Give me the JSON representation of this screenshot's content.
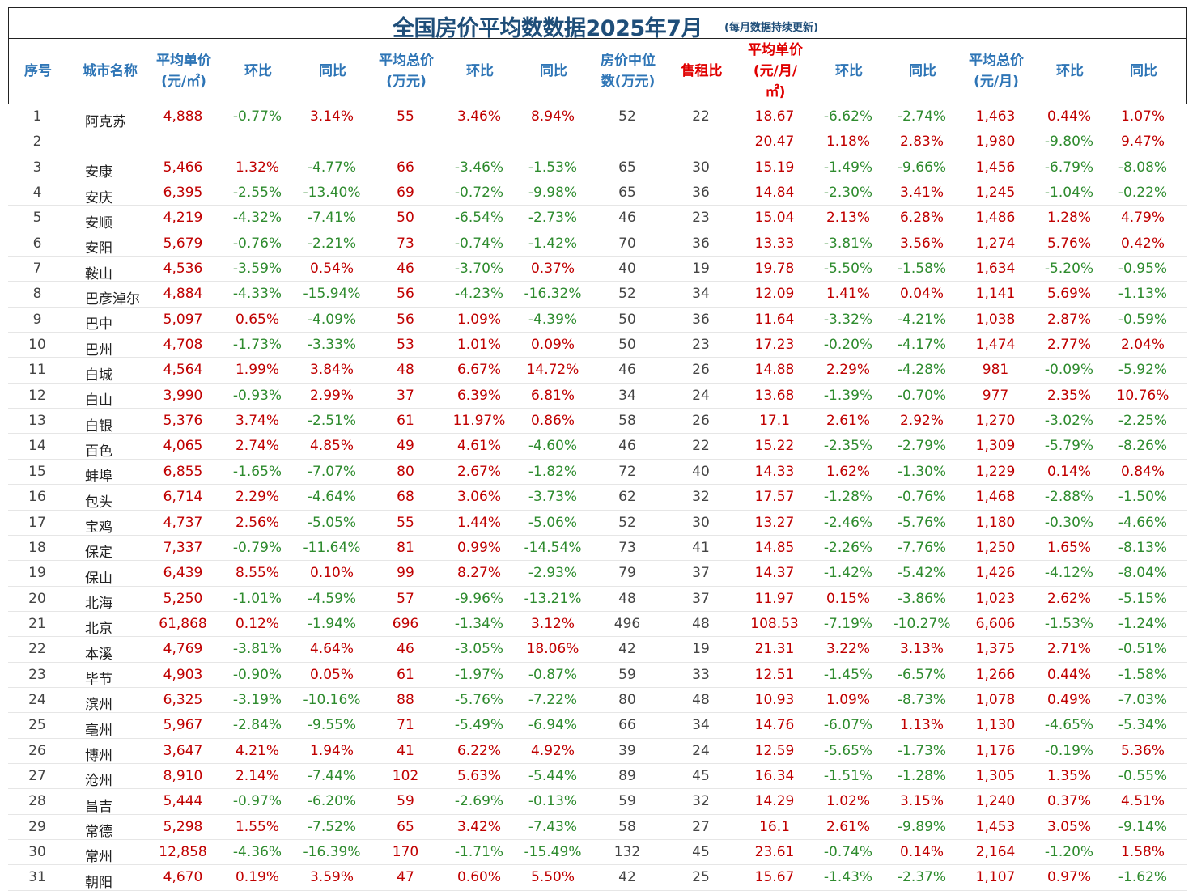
{
  "title": "全国房价平均数数据2025年7月",
  "subtitle": "(每月数据持续更新)",
  "colors": {
    "title": "#1f4e79",
    "header": "#2e75b6",
    "header_red": "#e00000",
    "positive": "#c00000",
    "negative": "#2e8b2e"
  },
  "headers": [
    {
      "text": "序号",
      "red": false
    },
    {
      "text": "城市名称",
      "red": false
    },
    {
      "text": "平均单价\n(元/㎡)",
      "red": false
    },
    {
      "text": "环比",
      "red": false
    },
    {
      "text": "同比",
      "red": false
    },
    {
      "text": "平均总价\n(万元)",
      "red": false
    },
    {
      "text": "环比",
      "red": false
    },
    {
      "text": "同比",
      "red": false
    },
    {
      "text": "房价中位\n数(万元)",
      "red": false
    },
    {
      "text": "售租比",
      "red": true
    },
    {
      "text": "平均单价\n(元/月/\n㎡)",
      "red": true
    },
    {
      "text": "环比",
      "red": false
    },
    {
      "text": "同比",
      "red": false
    },
    {
      "text": "平均总价\n(元/月)",
      "red": false
    },
    {
      "text": "环比",
      "red": false
    },
    {
      "text": "同比",
      "red": false
    }
  ],
  "rows": [
    [
      "1",
      "阿克苏",
      "4,888",
      "-0.77%",
      "3.14%",
      "55",
      "3.46%",
      "8.94%",
      "52",
      "22",
      "18.67",
      "-6.62%",
      "-2.74%",
      "1,463",
      "0.44%",
      "1.07%"
    ],
    [
      "2",
      "",
      "",
      "",
      "",
      "",
      "",
      "",
      "",
      "",
      "20.47",
      "1.18%",
      "2.83%",
      "1,980",
      "-9.80%",
      "9.47%"
    ],
    [
      "3",
      "安康",
      "5,466",
      "1.32%",
      "-4.77%",
      "66",
      "-3.46%",
      "-1.53%",
      "65",
      "30",
      "15.19",
      "-1.49%",
      "-9.66%",
      "1,456",
      "-6.79%",
      "-8.08%"
    ],
    [
      "4",
      "安庆",
      "6,395",
      "-2.55%",
      "-13.40%",
      "69",
      "-0.72%",
      "-9.98%",
      "65",
      "36",
      "14.84",
      "-2.30%",
      "3.41%",
      "1,245",
      "-1.04%",
      "-0.22%"
    ],
    [
      "5",
      "安顺",
      "4,219",
      "-4.32%",
      "-7.41%",
      "50",
      "-6.54%",
      "-2.73%",
      "46",
      "23",
      "15.04",
      "2.13%",
      "6.28%",
      "1,486",
      "1.28%",
      "4.79%"
    ],
    [
      "6",
      "安阳",
      "5,679",
      "-0.76%",
      "-2.21%",
      "73",
      "-0.74%",
      "-1.42%",
      "70",
      "36",
      "13.33",
      "-3.81%",
      "3.56%",
      "1,274",
      "5.76%",
      "0.42%"
    ],
    [
      "7",
      "鞍山",
      "4,536",
      "-3.59%",
      "0.54%",
      "46",
      "-3.70%",
      "0.37%",
      "40",
      "19",
      "19.78",
      "-5.50%",
      "-1.58%",
      "1,634",
      "-5.20%",
      "-0.95%"
    ],
    [
      "8",
      "巴彦淖尔",
      "4,884",
      "-4.33%",
      "-15.94%",
      "56",
      "-4.23%",
      "-16.32%",
      "52",
      "34",
      "12.09",
      "1.41%",
      "0.04%",
      "1,141",
      "5.69%",
      "-1.13%"
    ],
    [
      "9",
      "巴中",
      "5,097",
      "0.65%",
      "-4.09%",
      "56",
      "1.09%",
      "-4.39%",
      "50",
      "36",
      "11.64",
      "-3.32%",
      "-4.21%",
      "1,038",
      "2.87%",
      "-0.59%"
    ],
    [
      "10",
      "巴州",
      "4,708",
      "-1.73%",
      "-3.33%",
      "53",
      "1.01%",
      "0.09%",
      "50",
      "23",
      "17.23",
      "-0.20%",
      "-4.17%",
      "1,474",
      "2.77%",
      "2.04%"
    ],
    [
      "11",
      "白城",
      "4,564",
      "1.99%",
      "3.84%",
      "48",
      "6.67%",
      "14.72%",
      "46",
      "26",
      "14.88",
      "2.29%",
      "-4.28%",
      "981",
      "-0.09%",
      "-5.92%"
    ],
    [
      "12",
      "白山",
      "3,990",
      "-0.93%",
      "2.99%",
      "37",
      "6.39%",
      "6.81%",
      "34",
      "24",
      "13.68",
      "-1.39%",
      "-0.70%",
      "977",
      "2.35%",
      "10.76%"
    ],
    [
      "13",
      "白银",
      "5,376",
      "3.74%",
      "-2.51%",
      "61",
      "11.97%",
      "0.86%",
      "58",
      "26",
      "17.1",
      "2.61%",
      "2.92%",
      "1,270",
      "-3.02%",
      "-2.25%"
    ],
    [
      "14",
      "百色",
      "4,065",
      "2.74%",
      "4.85%",
      "49",
      "4.61%",
      "-4.60%",
      "46",
      "22",
      "15.22",
      "-2.35%",
      "-2.79%",
      "1,309",
      "-5.79%",
      "-8.26%"
    ],
    [
      "15",
      "蚌埠",
      "6,855",
      "-1.65%",
      "-7.07%",
      "80",
      "2.67%",
      "-1.82%",
      "72",
      "40",
      "14.33",
      "1.62%",
      "-1.30%",
      "1,229",
      "0.14%",
      "0.84%"
    ],
    [
      "16",
      "包头",
      "6,714",
      "2.29%",
      "-4.64%",
      "68",
      "3.06%",
      "-3.73%",
      "62",
      "32",
      "17.57",
      "-1.28%",
      "-0.76%",
      "1,468",
      "-2.88%",
      "-1.50%"
    ],
    [
      "17",
      "宝鸡",
      "4,737",
      "2.56%",
      "-5.05%",
      "55",
      "1.44%",
      "-5.06%",
      "52",
      "30",
      "13.27",
      "-2.46%",
      "-5.76%",
      "1,180",
      "-0.30%",
      "-4.66%"
    ],
    [
      "18",
      "保定",
      "7,337",
      "-0.79%",
      "-11.64%",
      "81",
      "0.99%",
      "-14.54%",
      "73",
      "41",
      "14.85",
      "-2.26%",
      "-7.76%",
      "1,250",
      "1.65%",
      "-8.13%"
    ],
    [
      "19",
      "保山",
      "6,439",
      "8.55%",
      "0.10%",
      "99",
      "8.27%",
      "-2.93%",
      "79",
      "37",
      "14.37",
      "-1.42%",
      "-5.42%",
      "1,426",
      "-4.12%",
      "-8.04%"
    ],
    [
      "20",
      "北海",
      "5,250",
      "-1.01%",
      "-4.59%",
      "57",
      "-9.96%",
      "-13.21%",
      "48",
      "37",
      "11.97",
      "0.15%",
      "-3.86%",
      "1,023",
      "2.62%",
      "-5.15%"
    ],
    [
      "21",
      "北京",
      "61,868",
      "0.12%",
      "-1.94%",
      "696",
      "-1.34%",
      "3.12%",
      "496",
      "48",
      "108.53",
      "-7.19%",
      "-10.27%",
      "6,606",
      "-1.53%",
      "-1.24%"
    ],
    [
      "22",
      "本溪",
      "4,769",
      "-3.81%",
      "4.64%",
      "46",
      "-3.05%",
      "18.06%",
      "42",
      "19",
      "21.31",
      "3.22%",
      "3.13%",
      "1,375",
      "2.71%",
      "-0.51%"
    ],
    [
      "23",
      "毕节",
      "4,903",
      "-0.90%",
      "0.05%",
      "61",
      "-1.97%",
      "-0.87%",
      "59",
      "33",
      "12.51",
      "-1.45%",
      "-6.57%",
      "1,266",
      "0.44%",
      "-1.58%"
    ],
    [
      "24",
      "滨州",
      "6,325",
      "-3.19%",
      "-10.16%",
      "88",
      "-5.76%",
      "-7.22%",
      "80",
      "48",
      "10.93",
      "1.09%",
      "-8.73%",
      "1,078",
      "0.49%",
      "-7.03%"
    ],
    [
      "25",
      "亳州",
      "5,967",
      "-2.84%",
      "-9.55%",
      "71",
      "-5.49%",
      "-6.94%",
      "66",
      "34",
      "14.76",
      "-6.07%",
      "1.13%",
      "1,130",
      "-4.65%",
      "-5.34%"
    ],
    [
      "26",
      "博州",
      "3,647",
      "4.21%",
      "1.94%",
      "41",
      "6.22%",
      "4.92%",
      "39",
      "24",
      "12.59",
      "-5.65%",
      "-1.73%",
      "1,176",
      "-0.19%",
      "5.36%"
    ],
    [
      "27",
      "沧州",
      "8,910",
      "2.14%",
      "-7.44%",
      "102",
      "5.63%",
      "-5.44%",
      "89",
      "45",
      "16.34",
      "-1.51%",
      "-1.28%",
      "1,305",
      "1.35%",
      "-0.55%"
    ],
    [
      "28",
      "昌吉",
      "5,444",
      "-0.97%",
      "-6.20%",
      "59",
      "-2.69%",
      "-0.13%",
      "59",
      "32",
      "14.29",
      "1.02%",
      "3.15%",
      "1,240",
      "0.37%",
      "4.51%"
    ],
    [
      "29",
      "常德",
      "5,298",
      "1.55%",
      "-7.52%",
      "65",
      "3.42%",
      "-7.43%",
      "58",
      "27",
      "16.1",
      "2.61%",
      "-9.89%",
      "1,453",
      "3.05%",
      "-9.14%"
    ],
    [
      "30",
      "常州",
      "12,858",
      "-4.36%",
      "-16.39%",
      "170",
      "-1.71%",
      "-15.49%",
      "132",
      "45",
      "23.61",
      "-0.74%",
      "0.14%",
      "2,164",
      "-1.20%",
      "1.58%"
    ],
    [
      "31",
      "朝阳",
      "4,670",
      "0.19%",
      "3.59%",
      "47",
      "0.60%",
      "5.50%",
      "42",
      "25",
      "15.67",
      "-1.43%",
      "-2.37%",
      "1,107",
      "0.97%",
      "-1.62%"
    ]
  ]
}
